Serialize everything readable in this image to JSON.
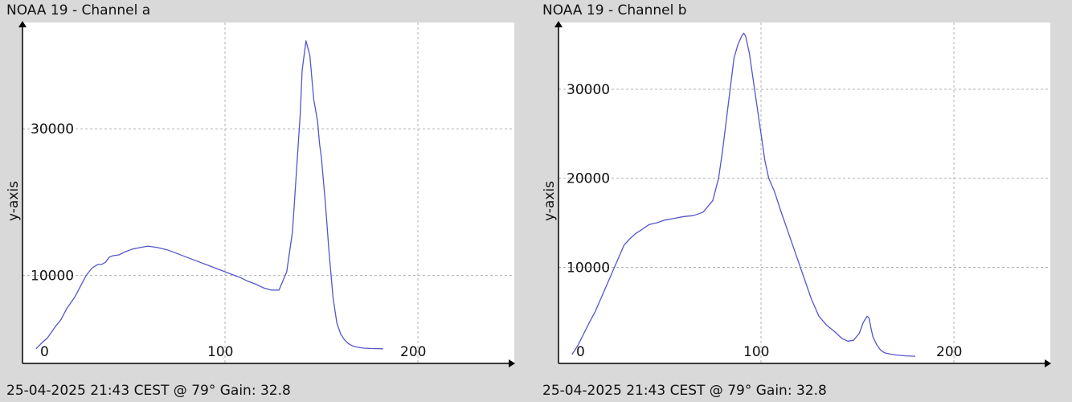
{
  "colors": {
    "background": "#d9d9d9",
    "plot_background": "#ffffff",
    "grid": "#b0b0b0",
    "axis": "#000000",
    "line": "#5555cc"
  },
  "chart_data": [
    {
      "type": "line",
      "title": "NOAA 19 - Channel a",
      "ylabel": "y-axis",
      "xlabel": "",
      "footer": "25-04-2025 21:43 CEST @ 79° Gain: 32.8",
      "xlim": [
        -5,
        250
      ],
      "ylim": [
        -2000,
        44500
      ],
      "xticks": [
        0,
        100,
        200
      ],
      "xtick_labels": [
        "0",
        "100",
        "200"
      ],
      "yticks": [
        10000,
        30000
      ],
      "ytick_labels": [
        "10000",
        "30000"
      ],
      "grid": true,
      "series": [
        {
          "x": [
            2,
            5,
            8,
            12,
            15,
            18,
            22,
            25,
            28,
            31,
            34,
            36,
            38,
            40,
            42,
            45,
            48,
            52,
            56,
            60,
            65,
            70,
            75,
            80,
            85,
            90,
            95,
            100,
            105,
            108,
            112,
            116,
            120,
            124,
            128,
            132,
            135,
            137,
            139,
            140,
            142,
            144,
            146,
            148,
            149,
            150,
            152,
            154,
            156,
            158,
            160,
            162,
            164,
            166,
            168,
            170,
            172,
            175,
            178,
            182
          ],
          "y": [
            0,
            800,
            1500,
            3000,
            4000,
            5500,
            7000,
            8500,
            10000,
            11000,
            11500,
            11500,
            11800,
            12500,
            12700,
            12800,
            13200,
            13600,
            13800,
            14000,
            13800,
            13500,
            13000,
            12500,
            12000,
            11500,
            11000,
            10500,
            10000,
            9700,
            9200,
            8800,
            8300,
            8000,
            8000,
            10500,
            16000,
            24000,
            32000,
            38000,
            42000,
            40000,
            34000,
            31000,
            28000,
            26000,
            20000,
            13000,
            7000,
            3500,
            2000,
            1200,
            700,
            400,
            250,
            150,
            80,
            40,
            20,
            0
          ]
        }
      ]
    },
    {
      "type": "line",
      "title": "NOAA 19 - Channel b",
      "ylabel": "y-axis",
      "xlabel": "",
      "footer": "25-04-2025 21:43 CEST @ 79° Gain: 32.8",
      "xlim": [
        -5,
        250
      ],
      "ylim": [
        -800,
        37500
      ],
      "xticks": [
        0,
        100,
        200
      ],
      "xtick_labels": [
        "0",
        "100",
        "200"
      ],
      "yticks": [
        10000,
        20000,
        30000
      ],
      "ytick_labels": [
        "10000",
        "20000",
        "30000"
      ],
      "grid": true,
      "series": [
        {
          "x": [
            2,
            5,
            8,
            11,
            14,
            17,
            20,
            23,
            26,
            29,
            32,
            35,
            38,
            42,
            46,
            50,
            55,
            60,
            65,
            70,
            75,
            78,
            80,
            82,
            84,
            86,
            88,
            90,
            91,
            92,
            93,
            94,
            96,
            98,
            100,
            102,
            104,
            107,
            110,
            114,
            118,
            122,
            126,
            130,
            134,
            138,
            142,
            145,
            148,
            151,
            153,
            155,
            156,
            157,
            158,
            160,
            162,
            164,
            167,
            170,
            175,
            180
          ],
          "y": [
            200,
            1200,
            2500,
            3800,
            5000,
            6500,
            8000,
            9500,
            11000,
            12500,
            13200,
            13800,
            14200,
            14800,
            15000,
            15300,
            15500,
            15700,
            15800,
            16200,
            17500,
            20000,
            23000,
            26500,
            30000,
            33500,
            35000,
            36000,
            36300,
            36000,
            35000,
            34000,
            31000,
            28000,
            25000,
            22000,
            20000,
            18500,
            16500,
            14000,
            11500,
            9000,
            6500,
            4500,
            3500,
            2800,
            2000,
            1700,
            1800,
            2600,
            3800,
            4500,
            4300,
            3200,
            2200,
            1300,
            700,
            400,
            250,
            150,
            50,
            0
          ]
        }
      ]
    }
  ]
}
